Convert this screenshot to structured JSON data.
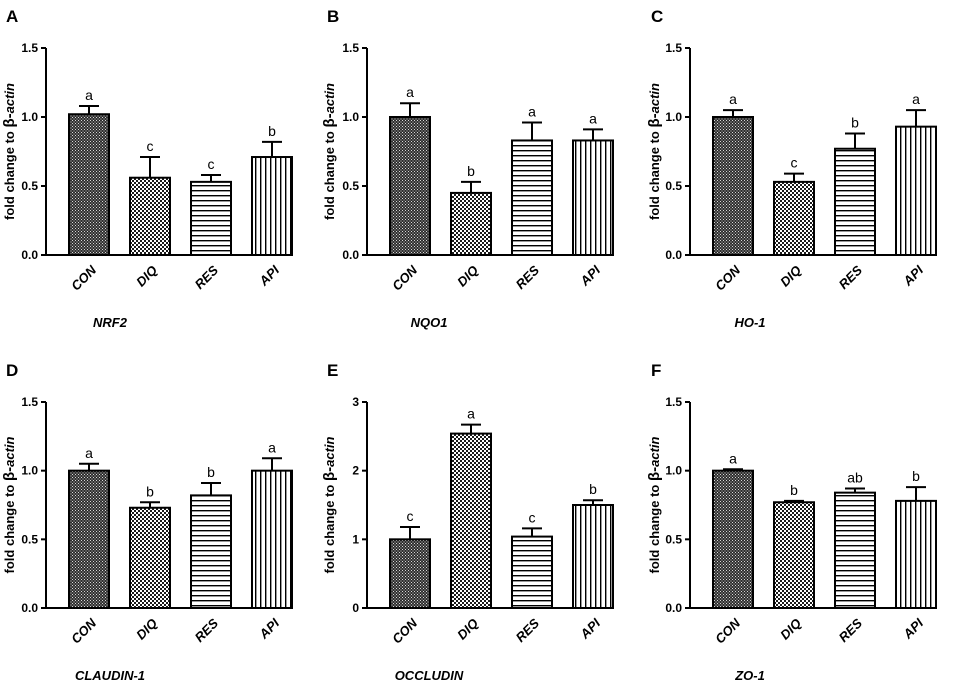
{
  "figure": {
    "ylabel_prefix": "fold change to ",
    "ylabel_beta": "β-",
    "ylabel_gene": "actin"
  },
  "chart_data": [
    {
      "type": "bar",
      "panel": "A",
      "xlabel": "NRF2",
      "categories": [
        "CON",
        "DIQ",
        "RES",
        "API"
      ],
      "values": [
        1.02,
        0.56,
        0.53,
        0.71
      ],
      "errors": [
        0.06,
        0.15,
        0.05,
        0.11
      ],
      "significance": [
        "a",
        "c",
        "c",
        "b"
      ],
      "ylim": [
        0,
        1.5
      ],
      "yticks": [
        0,
        0.5,
        1.0,
        1.5
      ],
      "ytick_labels": [
        "0.0",
        "0.5",
        "1.0",
        "1.5"
      ]
    },
    {
      "type": "bar",
      "panel": "B",
      "xlabel": "NQO1",
      "categories": [
        "CON",
        "DIQ",
        "RES",
        "API"
      ],
      "values": [
        1.0,
        0.45,
        0.83,
        0.83
      ],
      "errors": [
        0.1,
        0.08,
        0.13,
        0.08
      ],
      "significance": [
        "a",
        "b",
        "a",
        "a"
      ],
      "ylim": [
        0,
        1.5
      ],
      "yticks": [
        0,
        0.5,
        1.0,
        1.5
      ],
      "ytick_labels": [
        "0.0",
        "0.5",
        "1.0",
        "1.5"
      ]
    },
    {
      "type": "bar",
      "panel": "C",
      "xlabel": "HO-1",
      "categories": [
        "CON",
        "DIQ",
        "RES",
        "API"
      ],
      "values": [
        1.0,
        0.53,
        0.77,
        0.93
      ],
      "errors": [
        0.05,
        0.06,
        0.11,
        0.12
      ],
      "significance": [
        "a",
        "c",
        "b",
        "a"
      ],
      "ylim": [
        0,
        1.5
      ],
      "yticks": [
        0,
        0.5,
        1.0,
        1.5
      ],
      "ytick_labels": [
        "0.0",
        "0.5",
        "1.0",
        "1.5"
      ]
    },
    {
      "type": "bar",
      "panel": "D",
      "xlabel": "CLAUDIN-1",
      "categories": [
        "CON",
        "DIQ",
        "RES",
        "API"
      ],
      "values": [
        1.0,
        0.73,
        0.82,
        1.0
      ],
      "errors": [
        0.05,
        0.04,
        0.09,
        0.09
      ],
      "significance": [
        "a",
        "b",
        "b",
        "a"
      ],
      "ylim": [
        0,
        1.5
      ],
      "yticks": [
        0,
        0.5,
        1.0,
        1.5
      ],
      "ytick_labels": [
        "0.0",
        "0.5",
        "1.0",
        "1.5"
      ]
    },
    {
      "type": "bar",
      "panel": "E",
      "xlabel": "OCCLUDIN",
      "categories": [
        "CON",
        "DIQ",
        "RES",
        "API"
      ],
      "values": [
        1.0,
        2.54,
        1.04,
        1.5
      ],
      "errors": [
        0.18,
        0.13,
        0.12,
        0.07
      ],
      "significance": [
        "c",
        "a",
        "c",
        "b"
      ],
      "ylim": [
        0,
        3
      ],
      "yticks": [
        0,
        1,
        2,
        3
      ],
      "ytick_labels": [
        "0",
        "1",
        "2",
        "3"
      ]
    },
    {
      "type": "bar",
      "panel": "F",
      "xlabel": "ZO-1",
      "categories": [
        "CON",
        "DIQ",
        "RES",
        "API"
      ],
      "values": [
        1.0,
        0.77,
        0.84,
        0.78
      ],
      "errors": [
        0.01,
        0.01,
        0.03,
        0.1
      ],
      "significance": [
        "a",
        "b",
        "ab",
        "b"
      ],
      "ylim": [
        0,
        1.5
      ],
      "yticks": [
        0,
        0.5,
        1.0,
        1.5
      ],
      "ytick_labels": [
        "0.0",
        "0.5",
        "1.0",
        "1.5"
      ]
    }
  ]
}
